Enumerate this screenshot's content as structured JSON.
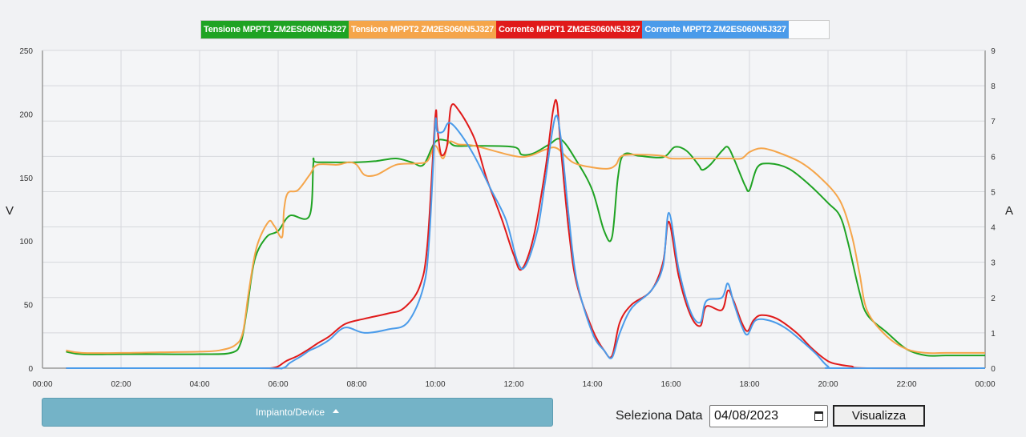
{
  "legend": {
    "items": [
      {
        "label": "Tensione MPPT1 ZM2ES060N5J327",
        "color": "#1fa323"
      },
      {
        "label": "Tensione MPPT2 ZM2ES060N5J327",
        "color": "#f5a54a"
      },
      {
        "label": "Corrente MPPT1 ZM2ES060N5J327",
        "color": "#e01a1a"
      },
      {
        "label": "Corrente MPPT2 ZM2ES060N5J327",
        "color": "#4a9bea"
      }
    ]
  },
  "controls": {
    "device_label": "Impianto/Device",
    "date_label": "Seleziona Data",
    "date_value": "04/08/2023",
    "view_label": "Visualizza"
  },
  "chart_data": {
    "type": "line",
    "xlabel": "",
    "ylabel_left": "V",
    "ylabel_right": "A",
    "xlim": [
      0,
      24
    ],
    "ylim_left": [
      0,
      250
    ],
    "ylim_right": [
      0,
      9
    ],
    "x_ticks": [
      "00:00",
      "02:00",
      "04:00",
      "06:00",
      "08:00",
      "10:00",
      "12:00",
      "14:00",
      "16:00",
      "18:00",
      "20:00",
      "22:00",
      "00:00"
    ],
    "y_ticks_left": [
      0,
      50,
      100,
      150,
      200,
      250
    ],
    "y_ticks_right": [
      0,
      1,
      2,
      3,
      4,
      5,
      6,
      7,
      8,
      9
    ],
    "grid": true,
    "legend_position": "top",
    "series": [
      {
        "name": "Tensione MPPT1 ZM2ES060N5J327",
        "axis": "left",
        "color": "#1fa323",
        "points": [
          [
            0.6,
            13
          ],
          [
            1,
            11
          ],
          [
            2,
            11
          ],
          [
            3,
            11
          ],
          [
            4,
            11
          ],
          [
            4.8,
            12
          ],
          [
            5.05,
            20
          ],
          [
            5.2,
            45
          ],
          [
            5.4,
            85
          ],
          [
            5.7,
            103
          ],
          [
            6.0,
            108
          ],
          [
            6.3,
            120
          ],
          [
            6.8,
            120
          ],
          [
            6.9,
            162
          ],
          [
            7,
            162
          ],
          [
            8,
            162
          ],
          [
            8.5,
            163
          ],
          [
            9,
            165
          ],
          [
            9.4,
            162
          ],
          [
            9.7,
            160
          ],
          [
            10,
            178
          ],
          [
            10.3,
            179
          ],
          [
            10.5,
            175
          ],
          [
            11,
            175
          ],
          [
            12,
            174
          ],
          [
            12.2,
            168
          ],
          [
            12.5,
            169
          ],
          [
            12.9,
            176
          ],
          [
            13.2,
            180
          ],
          [
            13.6,
            163
          ],
          [
            14,
            140
          ],
          [
            14.3,
            108
          ],
          [
            14.5,
            103
          ],
          [
            14.65,
            150
          ],
          [
            14.8,
            168
          ],
          [
            15.2,
            167
          ],
          [
            15.8,
            166
          ],
          [
            16.1,
            174
          ],
          [
            16.4,
            171
          ],
          [
            16.7,
            160
          ],
          [
            16.8,
            156
          ],
          [
            17,
            160
          ],
          [
            17.3,
            171
          ],
          [
            17.45,
            174
          ],
          [
            17.6,
            165
          ],
          [
            17.8,
            150
          ],
          [
            17.9,
            143
          ],
          [
            18,
            140
          ],
          [
            18.2,
            158
          ],
          [
            18.5,
            161
          ],
          [
            19,
            157
          ],
          [
            19.5,
            145
          ],
          [
            20,
            130
          ],
          [
            20.3,
            120
          ],
          [
            20.5,
            100
          ],
          [
            20.8,
            60
          ],
          [
            21,
            42
          ],
          [
            21.5,
            28
          ],
          [
            22,
            15
          ],
          [
            22.5,
            10
          ],
          [
            23,
            10
          ],
          [
            24,
            10
          ]
        ]
      },
      {
        "name": "Tensione MPPT2 ZM2ES060N5J327",
        "axis": "left",
        "color": "#f5a54a",
        "points": [
          [
            0.6,
            14
          ],
          [
            1,
            12
          ],
          [
            2,
            12
          ],
          [
            3,
            12.5
          ],
          [
            4,
            13
          ],
          [
            4.5,
            14
          ],
          [
            4.9,
            18
          ],
          [
            5.1,
            28
          ],
          [
            5.25,
            60
          ],
          [
            5.45,
            95
          ],
          [
            5.75,
            115
          ],
          [
            5.9,
            112
          ],
          [
            6.1,
            103
          ],
          [
            6.15,
            125
          ],
          [
            6.25,
            138
          ],
          [
            6.5,
            140
          ],
          [
            6.8,
            152
          ],
          [
            7,
            160
          ],
          [
            7.5,
            160
          ],
          [
            7.8,
            162
          ],
          [
            8,
            160
          ],
          [
            8.2,
            152
          ],
          [
            8.5,
            152
          ],
          [
            9,
            160
          ],
          [
            9.5,
            161
          ],
          [
            9.8,
            163
          ],
          [
            10,
            175
          ],
          [
            10.2,
            165
          ],
          [
            10.35,
            178
          ],
          [
            10.6,
            176
          ],
          [
            11,
            175
          ],
          [
            12,
            167
          ],
          [
            12.4,
            167
          ],
          [
            12.8,
            172
          ],
          [
            13.1,
            173
          ],
          [
            13.5,
            162
          ],
          [
            14,
            158
          ],
          [
            14.4,
            157
          ],
          [
            14.6,
            160
          ],
          [
            14.75,
            167
          ],
          [
            15.2,
            168
          ],
          [
            15.8,
            167
          ],
          [
            16,
            165
          ],
          [
            16.5,
            165
          ],
          [
            17,
            165
          ],
          [
            17.5,
            165
          ],
          [
            17.8,
            165
          ],
          [
            18,
            170
          ],
          [
            18.3,
            173
          ],
          [
            18.7,
            170
          ],
          [
            19.3,
            162
          ],
          [
            19.8,
            150
          ],
          [
            20.3,
            132
          ],
          [
            20.6,
            105
          ],
          [
            20.8,
            75
          ],
          [
            21,
            45
          ],
          [
            21.5,
            25
          ],
          [
            22,
            15
          ],
          [
            22.5,
            12
          ],
          [
            23,
            12
          ],
          [
            24,
            12
          ]
        ]
      },
      {
        "name": "Corrente MPPT1 ZM2ES060N5J327",
        "axis": "right",
        "color": "#e01a1a",
        "points": [
          [
            0.6,
            0
          ],
          [
            5.5,
            0
          ],
          [
            5.8,
            0
          ],
          [
            6.0,
            0.05
          ],
          [
            6.2,
            0.2
          ],
          [
            6.5,
            0.35
          ],
          [
            6.8,
            0.55
          ],
          [
            7.0,
            0.7
          ],
          [
            7.3,
            0.9
          ],
          [
            7.7,
            1.25
          ],
          [
            8.2,
            1.4
          ],
          [
            8.8,
            1.55
          ],
          [
            9.2,
            1.7
          ],
          [
            9.6,
            2.3
          ],
          [
            9.8,
            3.5
          ],
          [
            10.0,
            7.1
          ],
          [
            10.05,
            6.8
          ],
          [
            10.15,
            6.05
          ],
          [
            10.3,
            6.3
          ],
          [
            10.4,
            7.4
          ],
          [
            10.6,
            7.3
          ],
          [
            11,
            6.5
          ],
          [
            11.3,
            5.4
          ],
          [
            11.7,
            4.2
          ],
          [
            12.0,
            3.2
          ],
          [
            12.2,
            2.8
          ],
          [
            12.5,
            3.7
          ],
          [
            12.8,
            5.6
          ],
          [
            13.0,
            7.3
          ],
          [
            13.1,
            7.5
          ],
          [
            13.2,
            6.2
          ],
          [
            13.4,
            3.9
          ],
          [
            13.6,
            2.4
          ],
          [
            14.0,
            1.1
          ],
          [
            14.3,
            0.5
          ],
          [
            14.5,
            0.35
          ],
          [
            14.7,
            1.3
          ],
          [
            15.0,
            1.8
          ],
          [
            15.5,
            2.2
          ],
          [
            15.8,
            3.0
          ],
          [
            15.95,
            4.15
          ],
          [
            16.2,
            2.6
          ],
          [
            16.5,
            1.5
          ],
          [
            16.75,
            1.2
          ],
          [
            16.9,
            1.75
          ],
          [
            17.3,
            1.65
          ],
          [
            17.45,
            2.2
          ],
          [
            17.6,
            1.9
          ],
          [
            17.8,
            1.3
          ],
          [
            17.95,
            1.05
          ],
          [
            18.1,
            1.35
          ],
          [
            18.3,
            1.5
          ],
          [
            18.7,
            1.4
          ],
          [
            19.2,
            1.0
          ],
          [
            19.6,
            0.55
          ],
          [
            20.0,
            0.2
          ],
          [
            20.3,
            0.1
          ],
          [
            20.6,
            0.05
          ],
          [
            21.0,
            0
          ],
          [
            24,
            0
          ]
        ]
      },
      {
        "name": "Corrente MPPT2 ZM2ES060N5J327",
        "axis": "right",
        "color": "#4a9bea",
        "points": [
          [
            0.6,
            0
          ],
          [
            5.5,
            0
          ],
          [
            6.1,
            0
          ],
          [
            6.3,
            0.15
          ],
          [
            6.6,
            0.35
          ],
          [
            6.8,
            0.5
          ],
          [
            7.0,
            0.6
          ],
          [
            7.3,
            0.8
          ],
          [
            7.7,
            1.15
          ],
          [
            8.2,
            1.0
          ],
          [
            8.8,
            1.1
          ],
          [
            9.3,
            1.3
          ],
          [
            9.7,
            2.3
          ],
          [
            9.85,
            3.7
          ],
          [
            10.0,
            6.9
          ],
          [
            10.05,
            6.7
          ],
          [
            10.2,
            6.7
          ],
          [
            10.35,
            6.95
          ],
          [
            10.6,
            6.7
          ],
          [
            11,
            6.0
          ],
          [
            11.4,
            5.1
          ],
          [
            11.8,
            4.2
          ],
          [
            12.1,
            3.0
          ],
          [
            12.3,
            2.9
          ],
          [
            12.6,
            3.9
          ],
          [
            12.8,
            5.3
          ],
          [
            13.05,
            7.1
          ],
          [
            13.2,
            6.5
          ],
          [
            13.4,
            4.3
          ],
          [
            13.6,
            2.5
          ],
          [
            14.0,
            1.0
          ],
          [
            14.3,
            0.5
          ],
          [
            14.5,
            0.3
          ],
          [
            14.7,
            1.0
          ],
          [
            15.0,
            1.7
          ],
          [
            15.5,
            2.2
          ],
          [
            15.8,
            2.9
          ],
          [
            15.95,
            4.4
          ],
          [
            16.2,
            2.8
          ],
          [
            16.5,
            1.6
          ],
          [
            16.75,
            1.3
          ],
          [
            16.9,
            1.9
          ],
          [
            17.3,
            2.0
          ],
          [
            17.45,
            2.4
          ],
          [
            17.6,
            1.85
          ],
          [
            17.8,
            1.2
          ],
          [
            17.95,
            0.95
          ],
          [
            18.15,
            1.35
          ],
          [
            18.5,
            1.35
          ],
          [
            18.9,
            1.15
          ],
          [
            19.3,
            0.8
          ],
          [
            19.7,
            0.4
          ],
          [
            20.0,
            0.05
          ],
          [
            20.3,
            0
          ],
          [
            24,
            0
          ]
        ]
      }
    ]
  }
}
